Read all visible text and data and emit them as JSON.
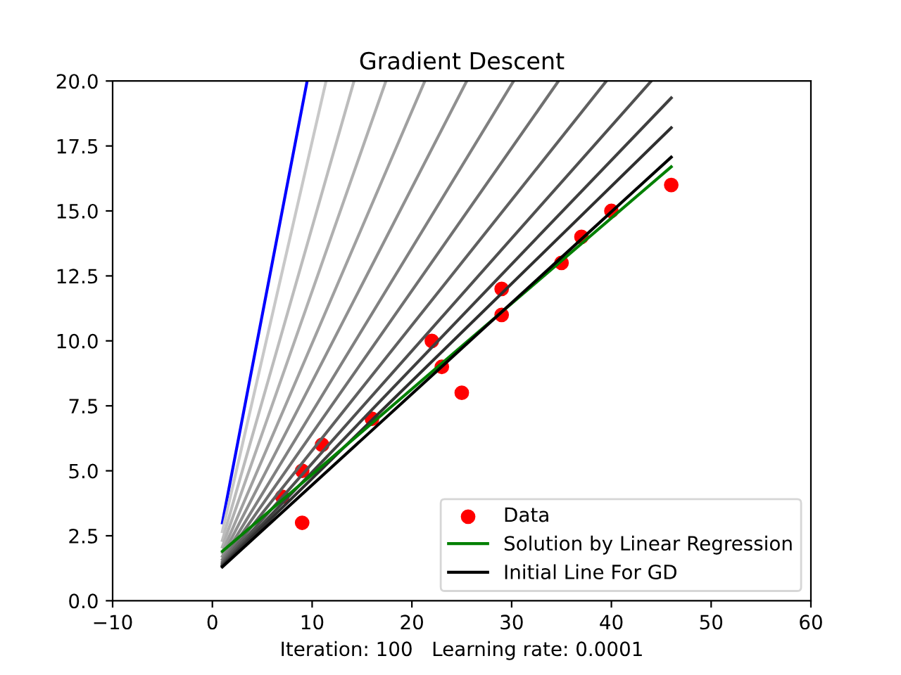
{
  "chart_data": {
    "type": "line",
    "title": "Gradient Descent",
    "xlabel": "Iteration: 100   Learning rate: 0.0001",
    "xlim": [
      -10,
      60
    ],
    "xticks": [
      {
        "value": -10,
        "label": "−10"
      },
      0,
      10,
      20,
      30,
      40,
      50,
      60
    ],
    "ylim": [
      0,
      20
    ],
    "yticks": [
      {
        "value": 0,
        "label": "0.0"
      },
      {
        "value": 2.5,
        "label": "2.5"
      },
      {
        "value": 5,
        "label": "5.0"
      },
      {
        "value": 7.5,
        "label": "7.5"
      },
      {
        "value": 10,
        "label": "10.0"
      },
      {
        "value": 12.5,
        "label": "12.5"
      },
      {
        "value": 15,
        "label": "15.0"
      },
      {
        "value": 17.5,
        "label": "17.5"
      },
      {
        "value": 20,
        "label": "20.0"
      }
    ],
    "grid": false,
    "legend": "bottom right",
    "series": [
      {
        "name": "Data",
        "type": "scatter",
        "marker": "circle",
        "color": "#ff0000",
        "x": [
          7,
          9,
          9,
          11,
          16,
          22,
          23,
          25,
          29,
          29,
          35,
          37,
          40,
          46
        ],
        "values": [
          4,
          3,
          5,
          6,
          7,
          10,
          9,
          8,
          12,
          11,
          13,
          14,
          15,
          16
        ]
      },
      {
        "color": "#0000ff",
        "x": [
          1,
          9.5
        ],
        "values": [
          3,
          20
        ]
      },
      {
        "type": "line",
        "color": "#c8c8c8",
        "x": [
          1,
          11.4
        ],
        "values": [
          2.66,
          20
        ]
      },
      {
        "type": "line",
        "color": "#bcbcbc",
        "x": [
          1,
          14.2
        ],
        "values": [
          2.32,
          20
        ]
      },
      {
        "type": "line",
        "color": "#b0b0b0",
        "x": [
          1,
          17.4
        ],
        "values": [
          2.07,
          20
        ]
      },
      {
        "type": "line",
        "color": "#a0a0a0",
        "x": [
          1,
          21.3
        ],
        "values": [
          1.86,
          20
        ]
      },
      {
        "type": "line",
        "color": "#909090",
        "x": [
          1,
          25.5
        ],
        "values": [
          1.71,
          20
        ]
      },
      {
        "type": "line",
        "color": "#808080",
        "x": [
          1,
          30.2
        ],
        "values": [
          1.59,
          20
        ]
      },
      {
        "type": "line",
        "color": "#707070",
        "x": [
          1,
          34.7
        ],
        "values": [
          1.5,
          20
        ]
      },
      {
        "type": "line",
        "color": "#606060",
        "x": [
          1,
          39.5
        ],
        "values": [
          1.44,
          20
        ]
      },
      {
        "type": "line",
        "color": "#505050",
        "x": [
          1,
          44
        ],
        "values": [
          1.39,
          20
        ]
      },
      {
        "type": "line",
        "color": "#404040",
        "x": [
          1,
          46
        ],
        "values": [
          1.35,
          19.35
        ]
      },
      {
        "type": "line",
        "color": "#303030",
        "x": [
          1,
          46
        ],
        "values": [
          1.33,
          18.2
        ]
      },
      {
        "name": "Solution by Linear Regression",
        "type": "line",
        "color": "#008000",
        "x": [
          1,
          46
        ],
        "values": [
          1.9,
          16.7
        ]
      },
      {
        "name": "Initial Line For GD",
        "type": "line",
        "color": "#000000",
        "x": [
          1,
          46
        ],
        "values": [
          1.3,
          17.07
        ]
      }
    ]
  }
}
